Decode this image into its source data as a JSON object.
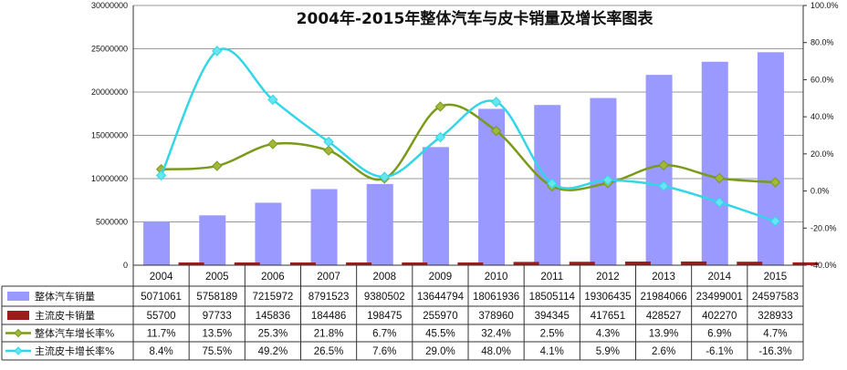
{
  "chart_data": {
    "type": "bar",
    "title": "2004年-2015年整体汽车与皮卡销量及增长率图表",
    "categories": [
      "2004",
      "2005",
      "2006",
      "2007",
      "2008",
      "2009",
      "2010",
      "2011",
      "2012",
      "2013",
      "2014",
      "2015"
    ],
    "left_axis": {
      "ylim": [
        0,
        30000000
      ],
      "ticks": [
        "0",
        "5000000",
        "10000000",
        "15000000",
        "20000000",
        "25000000",
        "30000000"
      ]
    },
    "right_axis": {
      "ylim": [
        -40,
        100
      ],
      "ticks": [
        "-40.0%",
        "-20.0%",
        "0.0%",
        "20.0%",
        "40.0%",
        "60.0%",
        "80.0%",
        "100.0%"
      ]
    },
    "grid": true,
    "legend_placement": "data-table-left",
    "series": [
      {
        "name": "整体汽车销量",
        "kind": "bar",
        "axis": "left",
        "color": "#9999ff",
        "values": [
          5071061,
          5758189,
          7215972,
          8791523,
          9380502,
          13644794,
          18061936,
          18505114,
          19306435,
          21984066,
          23499001,
          24597583
        ],
        "labels": [
          "5071061",
          "5758189",
          "7215972",
          "8791523",
          "9380502",
          "13644794",
          "18061936",
          "18505114",
          "19306435",
          "21984066",
          "23499001",
          "24597583"
        ]
      },
      {
        "name": "主流皮卡销量",
        "kind": "bar",
        "axis": "left",
        "color": "#9e1b1b",
        "values": [
          55700,
          97733,
          145836,
          184486,
          198475,
          255970,
          378960,
          394345,
          417651,
          428527,
          402270,
          328933
        ],
        "labels": [
          "55700",
          "97733",
          "145836",
          "184486",
          "198475",
          "255970",
          "378960",
          "394345",
          "417651",
          "428527",
          "402270",
          "328933"
        ]
      },
      {
        "name": "整体汽车增长率%",
        "kind": "line",
        "axis": "right",
        "color": "#7a9a1a",
        "marker_color": "#a3b83a",
        "values": [
          11.7,
          13.5,
          25.3,
          21.8,
          6.7,
          45.5,
          32.4,
          2.5,
          4.3,
          13.9,
          6.9,
          4.7
        ],
        "labels": [
          "11.7%",
          "13.5%",
          "25.3%",
          "21.8%",
          "6.7%",
          "45.5%",
          "32.4%",
          "2.5%",
          "4.3%",
          "13.9%",
          "6.9%",
          "4.7%"
        ]
      },
      {
        "name": "主流皮卡增长率%",
        "kind": "line",
        "axis": "right",
        "color": "#33d6e6",
        "marker_color": "#66e6f0",
        "values": [
          8.4,
          75.5,
          49.2,
          26.5,
          7.6,
          29.0,
          48.0,
          4.1,
          5.9,
          2.6,
          -6.1,
          -16.3
        ],
        "labels": [
          "8.4%",
          "75.5%",
          "49.2%",
          "26.5%",
          "7.6%",
          "29.0%",
          "48.0%",
          "4.1%",
          "5.9%",
          "2.6%",
          "-6.1%",
          "-16.3%"
        ]
      }
    ]
  }
}
